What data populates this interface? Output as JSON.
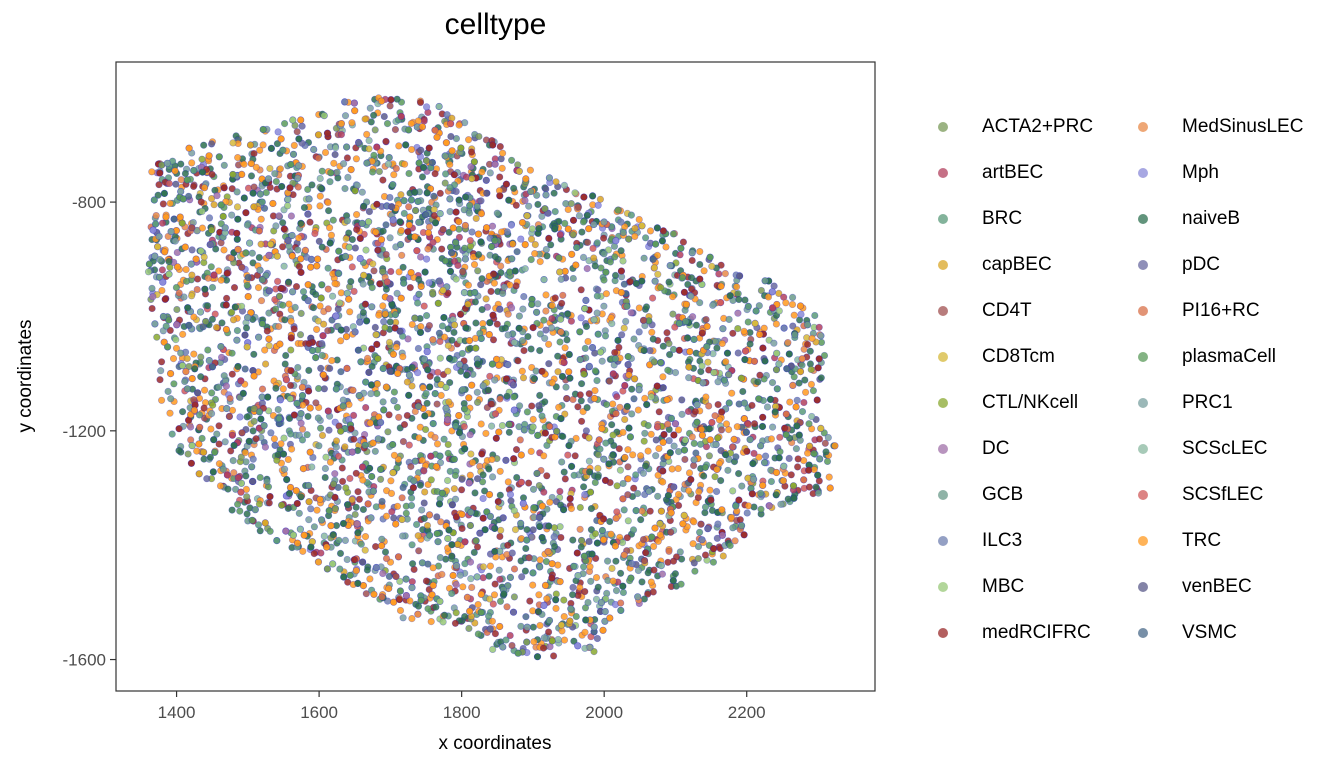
{
  "chart_data": {
    "type": "scatter",
    "title": "celltype",
    "xlabel": "x coordinates",
    "ylabel": "y coordinates",
    "xlim": [
      1315,
      2380
    ],
    "ylim": [
      -1655,
      -555
    ],
    "x_ticks": [
      1400,
      1600,
      1800,
      2000,
      2200
    ],
    "y_ticks": [
      -800,
      -1200,
      -1600
    ],
    "x_tick_labels": [
      "1400",
      "1600",
      "1800",
      "2000",
      "2200"
    ],
    "y_tick_labels": [
      "-800",
      "-1200",
      "-1600"
    ],
    "grid": false,
    "legend_position": "right",
    "region_outline": [
      [
        1700,
        -617
      ],
      [
        1760,
        -625
      ],
      [
        1880,
        -715
      ],
      [
        1960,
        -773
      ],
      [
        2060,
        -835
      ],
      [
        2100,
        -855
      ],
      [
        2160,
        -905
      ],
      [
        2240,
        -940
      ],
      [
        2300,
        -1000
      ],
      [
        2310,
        -1060
      ],
      [
        2300,
        -1180
      ],
      [
        2330,
        -1230
      ],
      [
        2320,
        -1300
      ],
      [
        2220,
        -1350
      ],
      [
        2160,
        -1440
      ],
      [
        2020,
        -1520
      ],
      [
        1980,
        -1600
      ],
      [
        1900,
        -1600
      ],
      [
        1840,
        -1585
      ],
      [
        1800,
        -1540
      ],
      [
        1720,
        -1530
      ],
      [
        1660,
        -1480
      ],
      [
        1580,
        -1420
      ],
      [
        1480,
        -1350
      ],
      [
        1400,
        -1230
      ],
      [
        1375,
        -1140
      ],
      [
        1375,
        -1060
      ],
      [
        1360,
        -975
      ],
      [
        1360,
        -880
      ],
      [
        1365,
        -740
      ],
      [
        1400,
        -710
      ],
      [
        1460,
        -690
      ],
      [
        1520,
        -670
      ],
      [
        1580,
        -650
      ],
      [
        1620,
        -630
      ],
      [
        1660,
        -615
      ]
    ],
    "series": [
      {
        "name": "ACTA2+PRC",
        "color": "#7a9a58"
      },
      {
        "name": "artBEC",
        "color": "#b2405e"
      },
      {
        "name": "BRC",
        "color": "#5a9a7a"
      },
      {
        "name": "capBEC",
        "color": "#d9a526"
      },
      {
        "name": "CD4T",
        "color": "#a05050"
      },
      {
        "name": "CD8Tcm",
        "color": "#d6b83a"
      },
      {
        "name": "CTL/NKcell",
        "color": "#8aa830"
      },
      {
        "name": "DC",
        "color": "#a070a8"
      },
      {
        "name": "GCB",
        "color": "#6a9a8a"
      },
      {
        "name": "ILC3",
        "color": "#7080b0"
      },
      {
        "name": "MBC",
        "color": "#98c878"
      },
      {
        "name": "medRCIFRC",
        "color": "#9a2a2a"
      },
      {
        "name": "MedSinusLEC",
        "color": "#e88a48"
      },
      {
        "name": "Mph",
        "color": "#8a8ad8"
      },
      {
        "name": "naiveB",
        "color": "#2e7050"
      },
      {
        "name": "pDC",
        "color": "#6a6aa0"
      },
      {
        "name": "PI16+RC",
        "color": "#d87048"
      },
      {
        "name": "plasmaCell",
        "color": "#5a9a5a"
      },
      {
        "name": "PRC1",
        "color": "#7aa0a0"
      },
      {
        "name": "SCScLEC",
        "color": "#8ab8a0"
      },
      {
        "name": "SCSfLEC",
        "color": "#d05a5a"
      },
      {
        "name": "TRC",
        "color": "#ff9a20"
      },
      {
        "name": "venBEC",
        "color": "#5a5a8a"
      },
      {
        "name": "VSMC",
        "color": "#4a6a8a"
      }
    ]
  },
  "colors": {
    "point_outline": "#1e1ec8",
    "axis": "#333333",
    "panel_background": "#ffffff"
  }
}
